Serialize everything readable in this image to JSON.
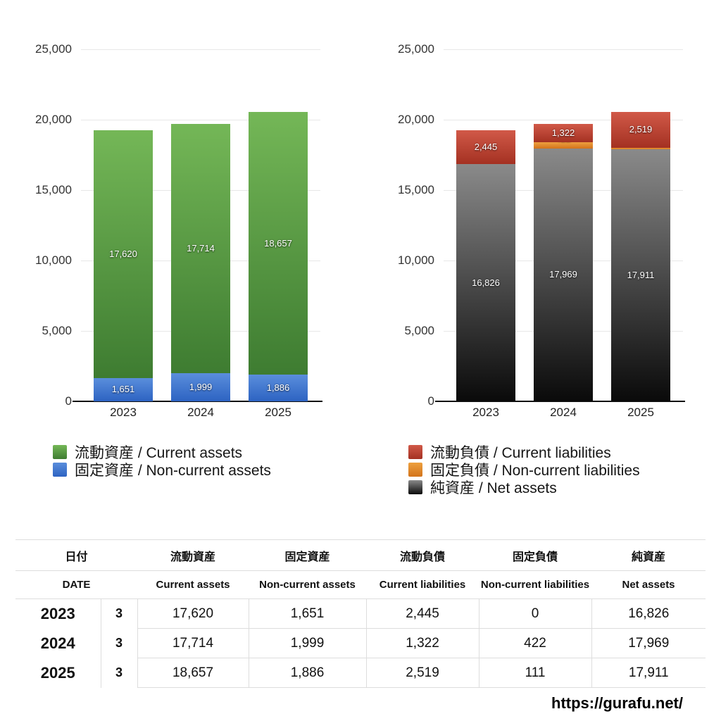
{
  "chart_data": [
    {
      "type": "bar",
      "subtype": "stacked",
      "categories": [
        "2023",
        "2024",
        "2025"
      ],
      "series": [
        {
          "name": "流動資産 / Current assets",
          "values": [
            17620,
            17714,
            18657
          ],
          "color_top": "#74b757",
          "color_bottom": "#3e7c31"
        },
        {
          "name": "固定資産 / Non-current assets",
          "values": [
            1651,
            1999,
            1886
          ],
          "color_top": "#5a8edc",
          "color_bottom": "#2d63c2"
        }
      ],
      "stack_order_bottom_up": [
        1,
        0
      ],
      "ylim": [
        0,
        25000
      ],
      "ytick_step": 5000,
      "ytick_labels": [
        "0",
        "5,000",
        "10,000",
        "15,000",
        "20,000",
        "25,000"
      ],
      "grid": true,
      "legend_position": "bottom-left"
    },
    {
      "type": "bar",
      "subtype": "stacked",
      "categories": [
        "2023",
        "2024",
        "2025"
      ],
      "series": [
        {
          "name": "流動負債 / Current liabilities",
          "values": [
            2445,
            1322,
            2519
          ],
          "color_top": "#d15948",
          "color_bottom": "#a43122"
        },
        {
          "name": "固定負債 / Non-current liabilities",
          "values": [
            0,
            422,
            111
          ],
          "color_top": "#eda03f",
          "color_bottom": "#d3741c"
        },
        {
          "name": "純資産 / Net assets",
          "values": [
            16826,
            17969,
            17911
          ],
          "color_top": "#8a8a8a",
          "color_bottom": "#0a0a0a"
        }
      ],
      "stack_order_bottom_up": [
        2,
        1,
        0
      ],
      "ylim": [
        0,
        25000
      ],
      "ytick_step": 5000,
      "ytick_labels": [
        "0",
        "5,000",
        "10,000",
        "15,000",
        "20,000",
        "25,000"
      ],
      "grid": true,
      "legend_position": "bottom-left"
    }
  ],
  "table": {
    "header_jp": [
      "日付",
      "流動資産",
      "固定資産",
      "流動負債",
      "固定負債",
      "純資産"
    ],
    "header_en": [
      "DATE",
      "Current assets",
      "Non-current assets",
      "Current liabilities",
      "Non-current liabilities",
      "Net assets"
    ],
    "rows": [
      {
        "year": "2023",
        "month": "3",
        "values": [
          "17,620",
          "1,651",
          "2,445",
          "0",
          "16,826"
        ]
      },
      {
        "year": "2024",
        "month": "3",
        "values": [
          "17,714",
          "1,999",
          "1,322",
          "422",
          "17,969"
        ]
      },
      {
        "year": "2025",
        "month": "3",
        "values": [
          "18,657",
          "1,886",
          "2,519",
          "111",
          "17,911"
        ]
      }
    ]
  },
  "footer": {
    "url": "https://gurafu.net/"
  }
}
